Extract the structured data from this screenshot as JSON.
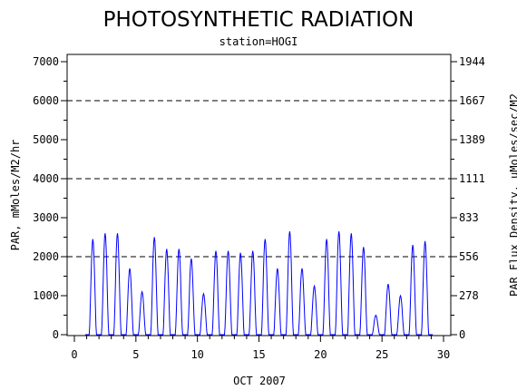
{
  "chart_data": {
    "type": "line",
    "title": "PHOTOSYNTHETIC RADIATION",
    "subtitle": "station=HOGI",
    "xlabel": "OCT 2007",
    "ylabel_left": "PAR, mMoles/M2/hr",
    "ylabel_right": "PAR Flux Density, uMoles/sec/M2",
    "xlim": [
      0,
      30
    ],
    "ylim_left": [
      0,
      7000
    ],
    "x_ticks": [
      "0",
      "5",
      "10",
      "15",
      "20",
      "25",
      "30"
    ],
    "y_ticks_left": [
      "0",
      "1000",
      "2000",
      "3000",
      "4000",
      "5000",
      "6000",
      "7000"
    ],
    "y_ticks_right": [
      "0",
      "278",
      "556",
      "833",
      "1111",
      "1389",
      "1667",
      "1944"
    ],
    "y_right_tick_values": [
      0,
      1000,
      2000,
      3000,
      4000,
      5000,
      6000,
      7000
    ],
    "dashed_gridlines_y": [
      2000,
      4000,
      6000
    ],
    "line_color": "#0000ff",
    "series": [
      {
        "day_start": 1,
        "daily_peaks": [
          2450,
          2600,
          2600,
          1700,
          1100,
          2500,
          2200,
          2200,
          1950,
          1050,
          2150,
          2150,
          2100,
          2150,
          2450,
          1700,
          2650,
          1700,
          1250,
          2450,
          2650,
          2600,
          2250,
          500,
          1300,
          1000,
          2300,
          2400
        ]
      }
    ]
  }
}
